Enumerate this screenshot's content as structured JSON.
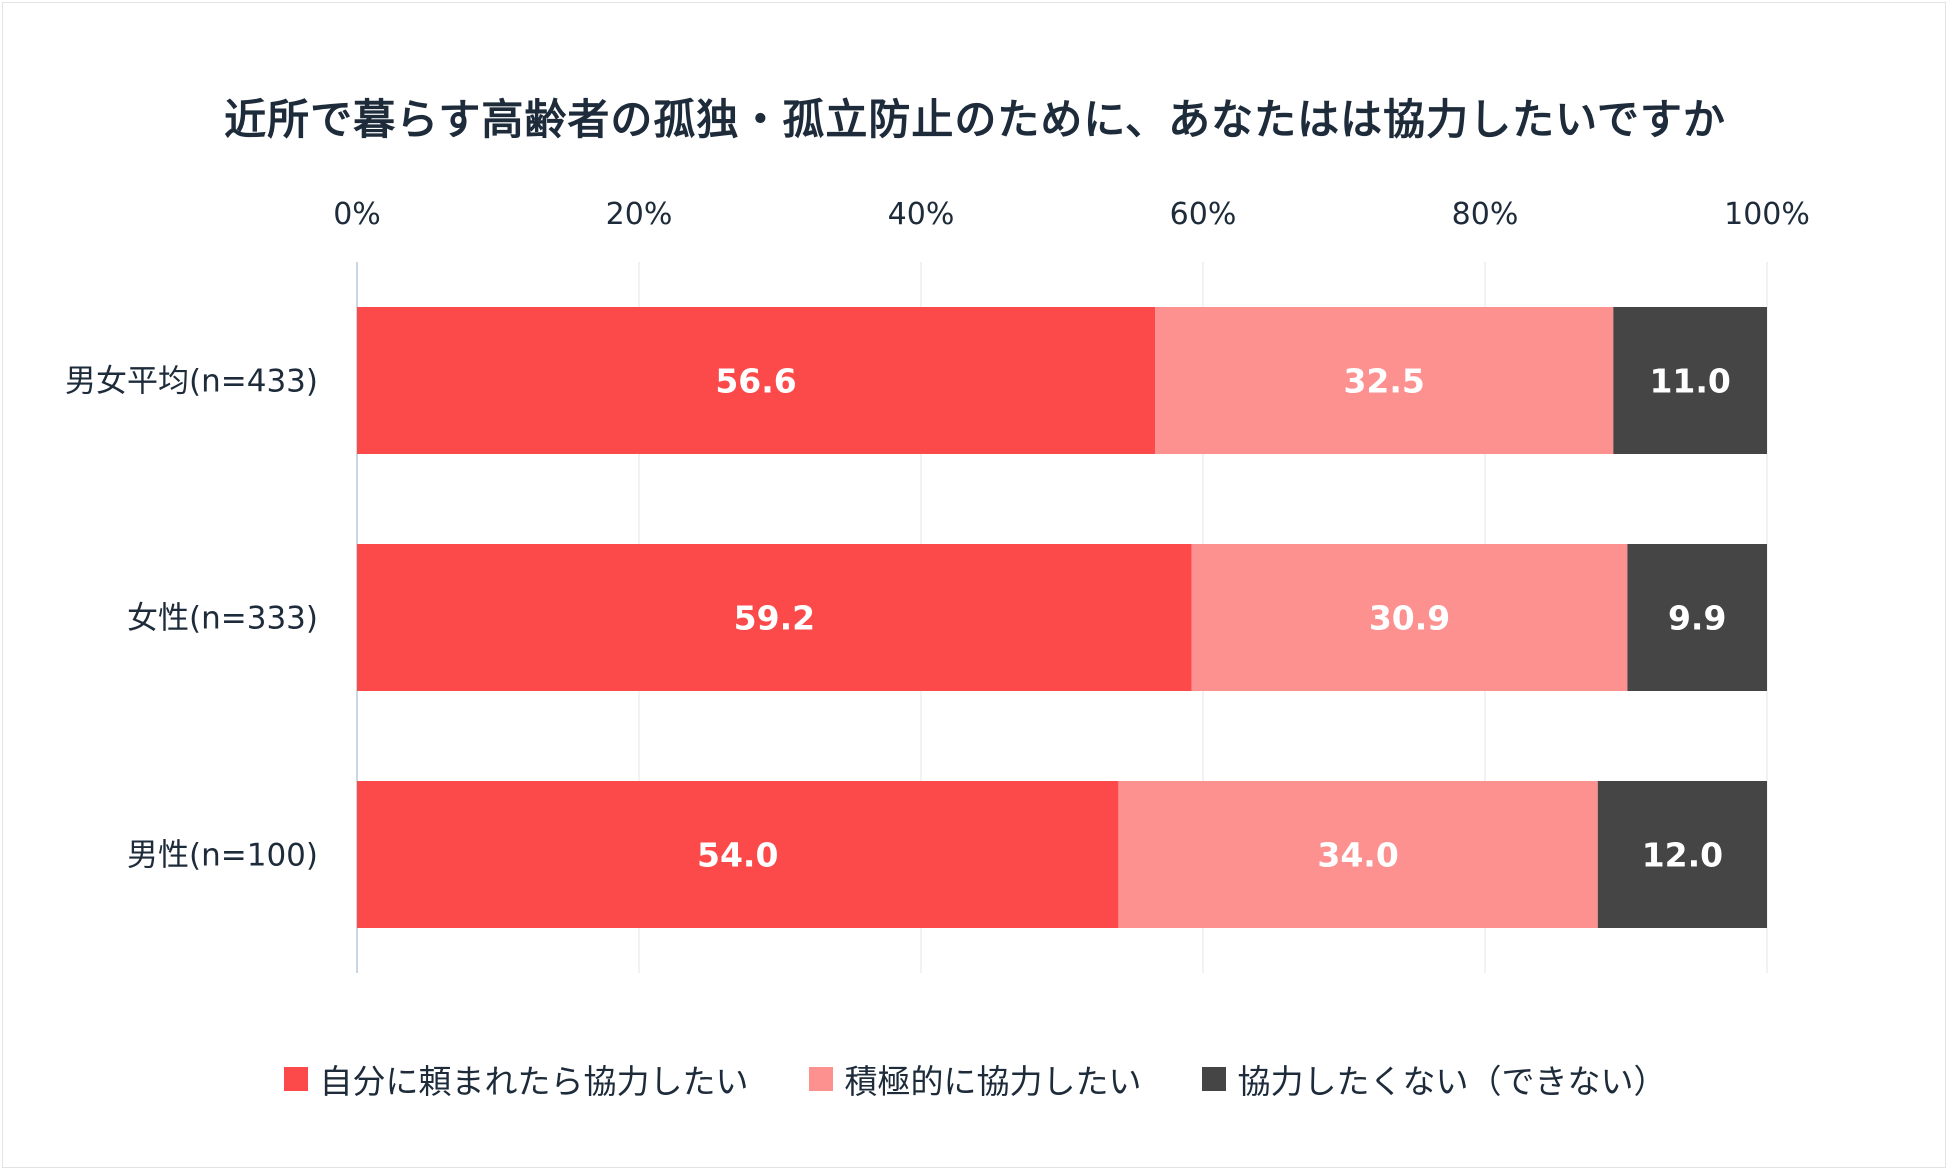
{
  "chart_data": {
    "type": "bar",
    "orientation": "horizontal",
    "stacked": true,
    "title": "近所で暮らす高齢者の孤独・孤立防止のために、あなたはは協力したいですか",
    "categories": [
      "男女平均(n=433)",
      "女性(n=333)",
      "男性(n=100)"
    ],
    "series": [
      {
        "name": "自分に頼まれたら協力したい",
        "color": "#fc4a4a",
        "values": [
          56.6,
          59.2,
          54.0
        ],
        "labels": [
          "56.6",
          "59.2",
          "54.0"
        ]
      },
      {
        "name": "積極的に協力したい",
        "color": "#fc9190",
        "values": [
          32.5,
          30.9,
          34.0
        ],
        "labels": [
          "32.5",
          "30.9",
          "34.0"
        ]
      },
      {
        "name": "協力したくない（できない）",
        "color": "#454545",
        "values": [
          11.0,
          9.9,
          12.0
        ],
        "labels": [
          "11.0",
          "9.9",
          "12.0"
        ]
      }
    ],
    "xlim": [
      0,
      100
    ],
    "xticks": [
      0,
      20,
      40,
      60,
      80,
      100
    ],
    "xtick_labels": [
      "0%",
      "20%",
      "40%",
      "60%",
      "80%",
      "100%"
    ],
    "grid": true,
    "legend_position": "bottom"
  }
}
